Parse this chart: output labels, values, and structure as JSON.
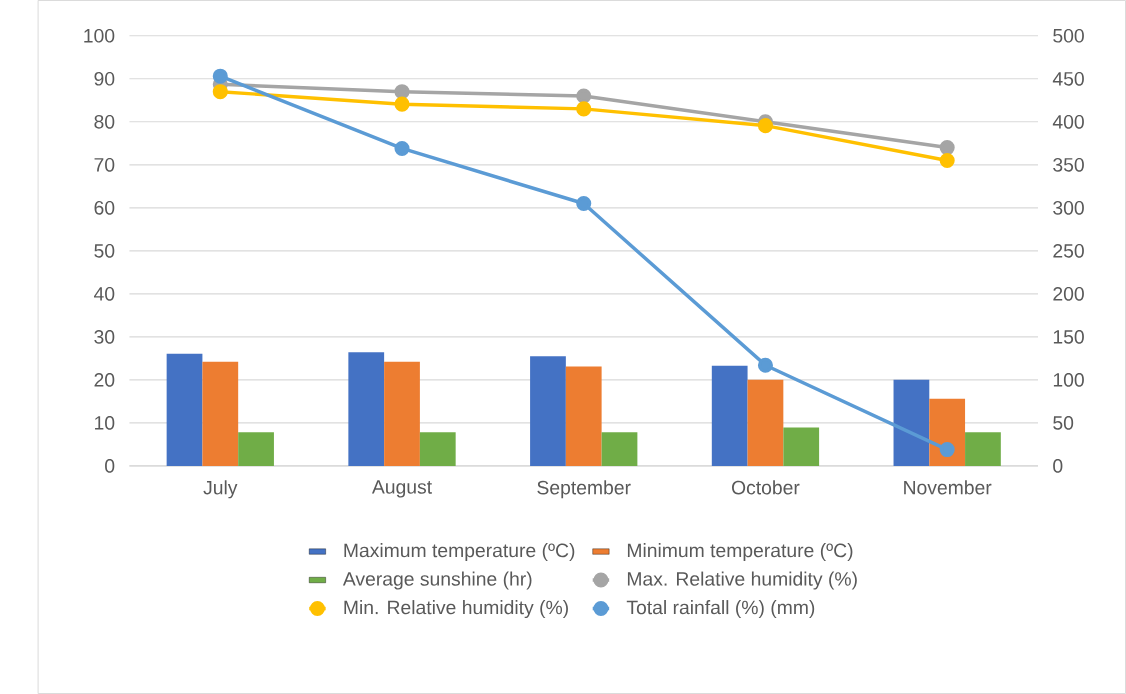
{
  "chart_data": {
    "type": "bar",
    "categories": [
      "July",
      "August",
      "September",
      "October",
      "November"
    ],
    "series": [
      {
        "name": "Maximum temperature (ºC)",
        "color": "#4472c4",
        "values": [
          26.1,
          26.4,
          25.5,
          23.3,
          20
        ]
      },
      {
        "name": "Minimum temperature (ºC)",
        "color": "#ed7d31",
        "values": [
          24.2,
          24.2,
          23.1,
          20,
          15.6
        ]
      },
      {
        "name": "Average sunshine (hr)",
        "color": "#70ad47",
        "values": [
          7.8,
          7.8,
          7.8,
          8.9,
          7.8
        ]
      },
      {
        "name": "Max. Relative humidity (%)",
        "type": "line",
        "color": "#a5a5a5",
        "values": [
          88.7,
          87,
          86,
          80,
          74
        ]
      },
      {
        "name": "Min. Relative humidity (%)",
        "type": "line",
        "color": "#ffc000",
        "values": [
          87,
          84.1,
          83,
          79.1,
          71
        ]
      },
      {
        "name": "Total rainfall (%) (mm)",
        "type": "line",
        "axis": "y2",
        "color": "#5b9bd5",
        "values": [
          453,
          369,
          305,
          117,
          19
        ]
      }
    ],
    "ylim": [
      0,
      100
    ],
    "yticks": [
      0,
      10,
      20,
      30,
      40,
      50,
      60,
      70,
      80,
      90,
      100
    ],
    "y2lim": [
      0,
      500
    ],
    "y2ticks": [
      0,
      50,
      100,
      150,
      200,
      250,
      300,
      350,
      400,
      450,
      500
    ],
    "grid": "y",
    "legend": "bottom",
    "marker": "circle"
  }
}
